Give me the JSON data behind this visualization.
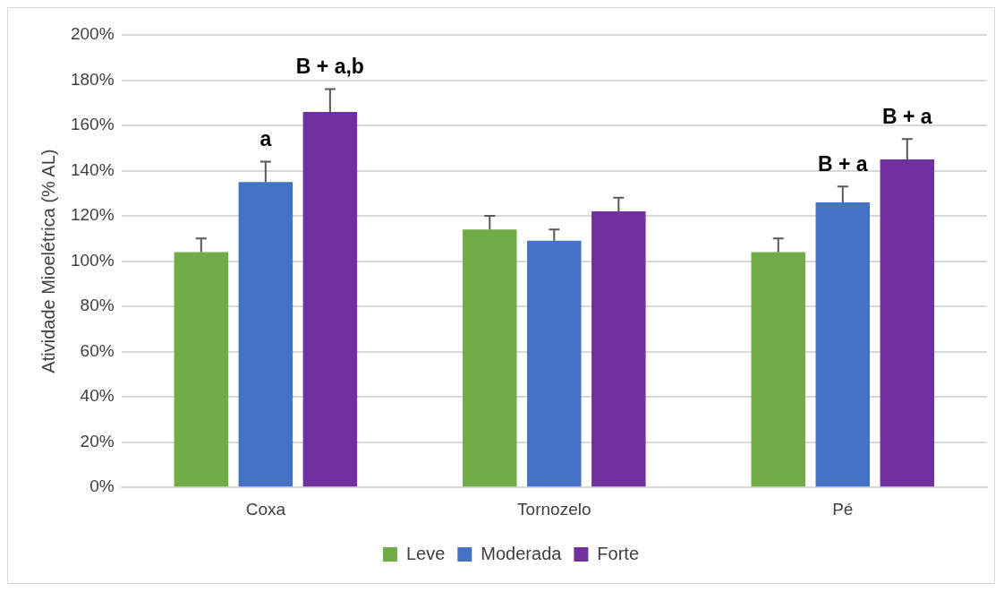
{
  "chart_data": {
    "type": "bar",
    "ylabel": "Atividade Mioelétrica (% AL)",
    "categories": [
      "Coxa",
      "Tornozelo",
      "Pé"
    ],
    "series": [
      {
        "name": "Leve",
        "color": "#70ad47",
        "values": [
          104,
          114,
          104
        ],
        "errors": [
          [
            104,
            110
          ],
          [
            114,
            120
          ],
          [
            104,
            110
          ]
        ]
      },
      {
        "name": "Moderada",
        "color": "#4472c4",
        "values": [
          135,
          109,
          126
        ],
        "errors": [
          [
            135,
            144
          ],
          [
            109,
            114
          ],
          [
            126,
            133
          ]
        ]
      },
      {
        "name": "Forte",
        "color": "#7030a0",
        "values": [
          166,
          122,
          145
        ],
        "errors": [
          [
            166,
            176
          ],
          [
            122,
            128
          ],
          [
            145,
            154
          ]
        ]
      }
    ],
    "ylim": [
      0,
      200
    ],
    "yticks": [
      {
        "value": 0,
        "label": "0%"
      },
      {
        "value": 20,
        "label": "20%"
      },
      {
        "value": 40,
        "label": "40%"
      },
      {
        "value": 60,
        "label": "60%"
      },
      {
        "value": 80,
        "label": "80%"
      },
      {
        "value": 100,
        "label": "100%"
      },
      {
        "value": 120,
        "label": "120%"
      },
      {
        "value": 140,
        "label": "140%"
      },
      {
        "value": 160,
        "label": "160%"
      },
      {
        "value": 180,
        "label": "180%"
      },
      {
        "value": 200,
        "label": "200%"
      }
    ],
    "grid": "y",
    "legend": "bottom",
    "annotations": [
      {
        "text": "a",
        "x": "Coxa",
        "y": 144
      },
      "B + a,b",
      {
        "text": "B + a",
        "x": "Pé",
        "y": 133
      },
      "B + a"
    ]
  }
}
